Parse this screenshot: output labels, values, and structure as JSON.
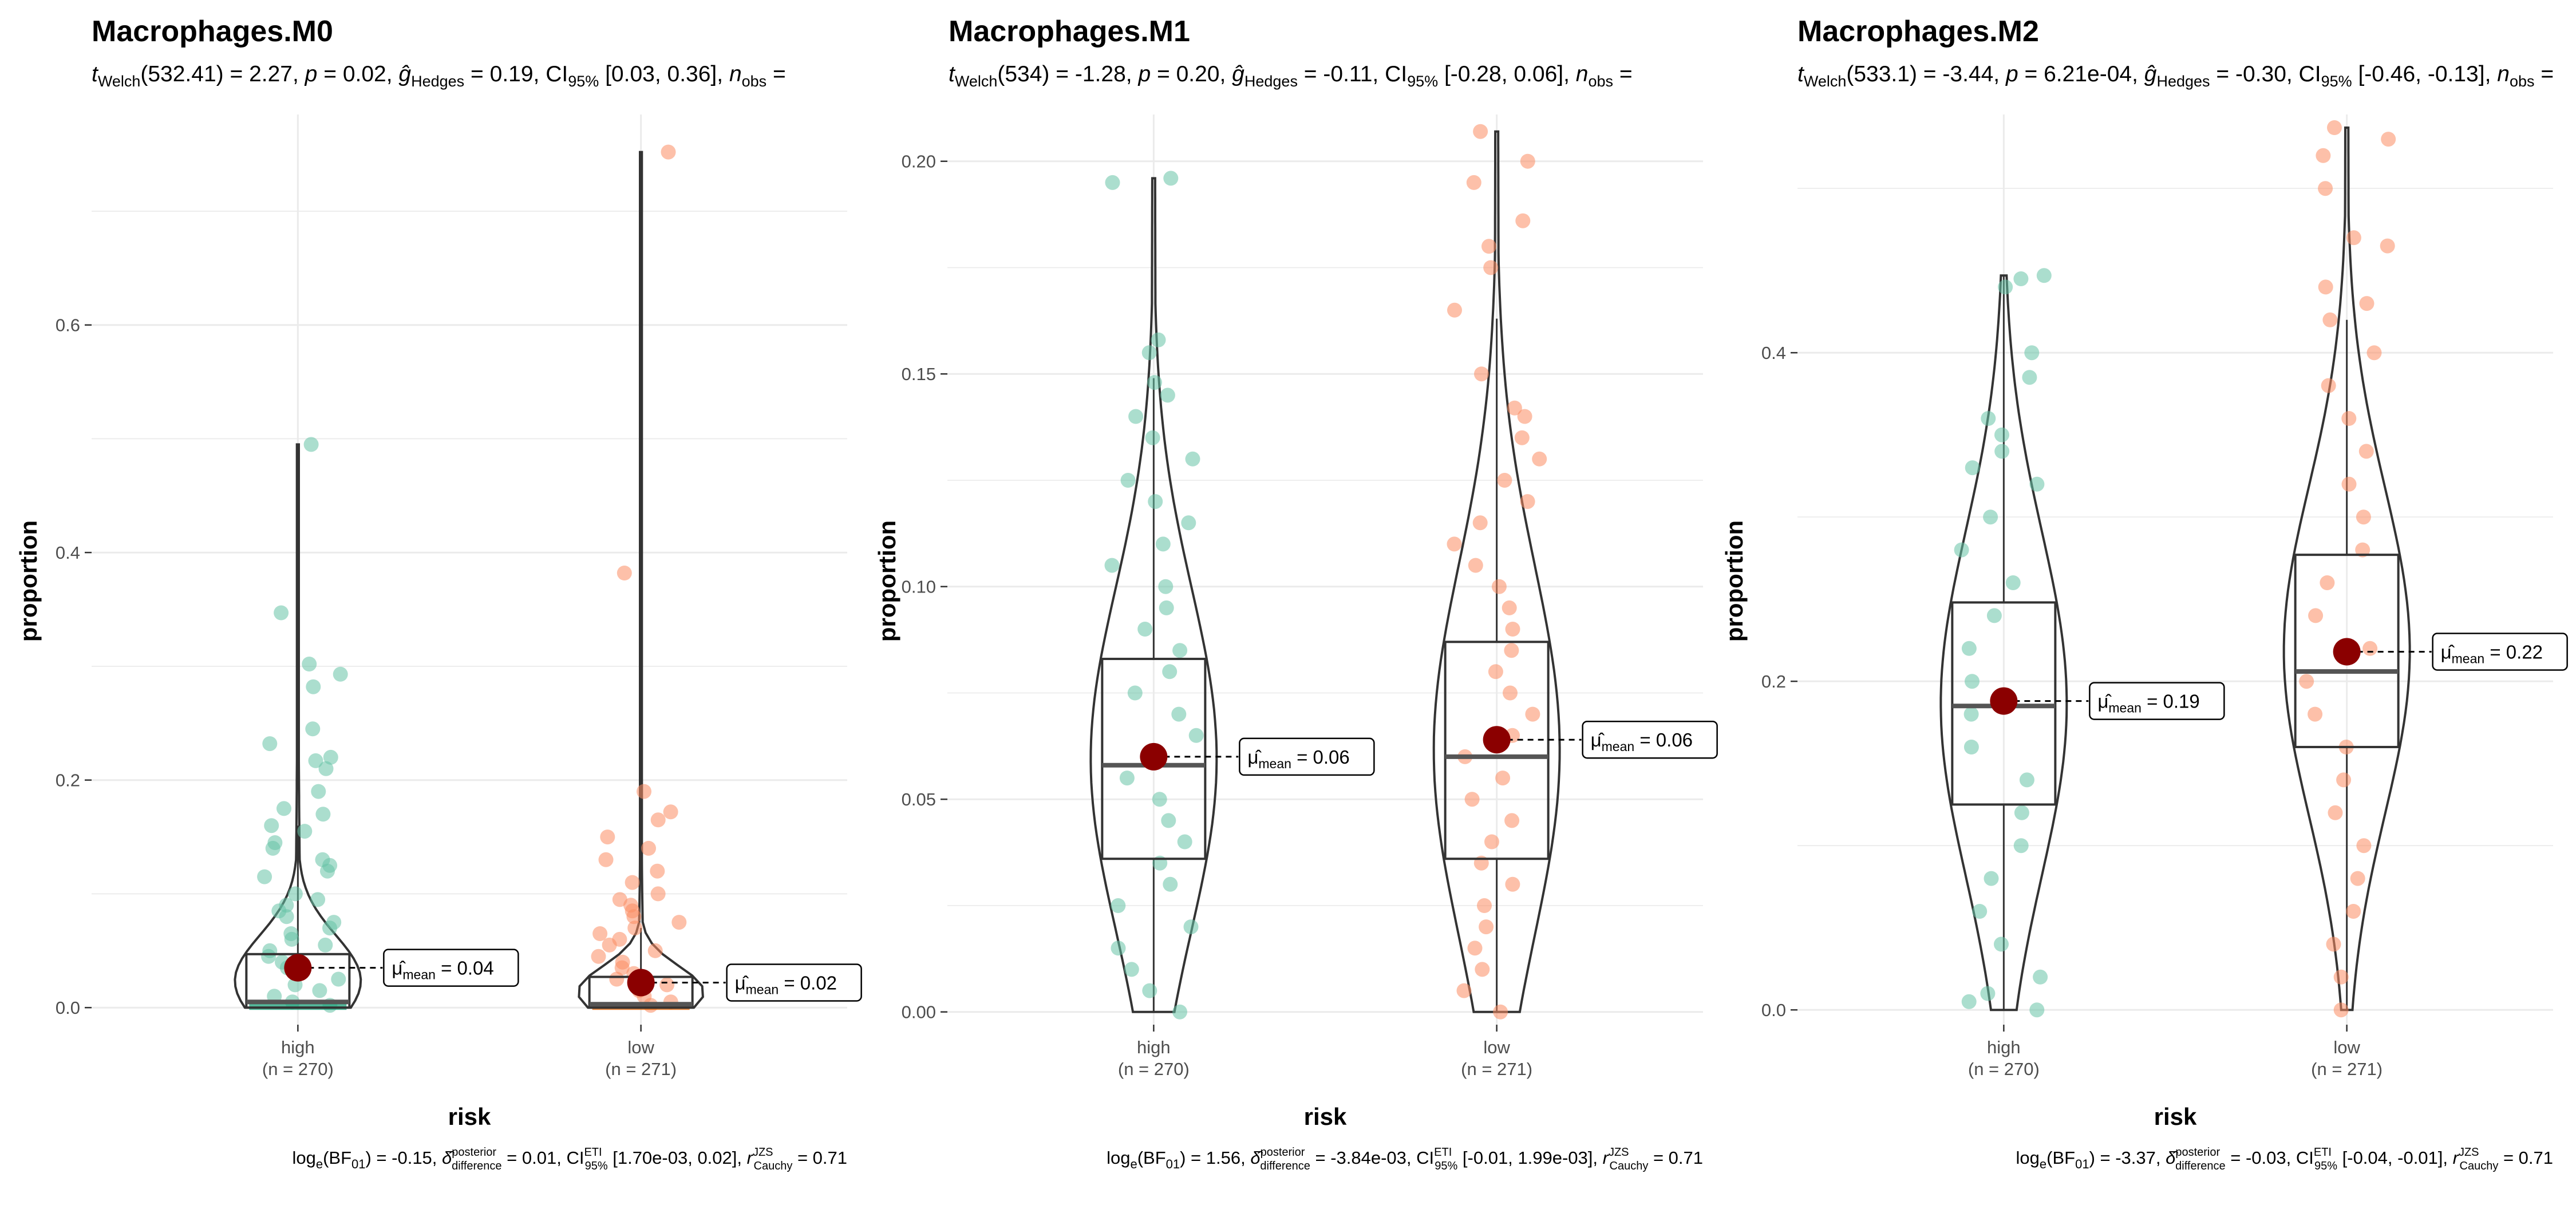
{
  "chart_data": [
    {
      "type": "violin-box-scatter",
      "title": "Macrophages.M0",
      "subtitle": {
        "df": "532.41",
        "t": "2.27",
        "p": "0.02",
        "g": "0.19",
        "ci": "[0.03, 0.36]",
        "tail": "n"
      },
      "caption": {
        "bf": "-0.15",
        "delta": "0.01",
        "ci": "[1.70e-03, 0.02]",
        "r": "0.71"
      },
      "xlabel": "risk",
      "ylabel": "proportion",
      "ylim": [
        -0.015,
        0.785
      ],
      "yticks": [
        0.0,
        0.2,
        0.4,
        0.6
      ],
      "ytick_labels": [
        "0.0",
        "0.2",
        "0.4",
        "0.6"
      ],
      "groups": [
        {
          "name": "high",
          "n_label": "(n = 270)",
          "color": "#66c2a5",
          "fill": "#1b9e77",
          "mean": 0.035,
          "mean_label": "= 0.04",
          "q1": 0.0,
          "median": 0.005,
          "q3": 0.047,
          "whisker_low": 0.0,
          "whisker_high": 0.16,
          "max": 0.495,
          "points": [
            0.495,
            0.347,
            0.302,
            0.293,
            0.282,
            0.245,
            0.232,
            0.22,
            0.217,
            0.21,
            0.19,
            0.175,
            0.17,
            0.16,
            0.155,
            0.145,
            0.14,
            0.13,
            0.125,
            0.12,
            0.115,
            0.1,
            0.095,
            0.09,
            0.085,
            0.08,
            0.075,
            0.07,
            0.065,
            0.06,
            0.055,
            0.05,
            0.045,
            0.04,
            0.035,
            0.03,
            0.025,
            0.02,
            0.015,
            0.01,
            0.005,
            0.002
          ]
        },
        {
          "name": "low",
          "n_label": "(n = 271)",
          "color": "#fc8d62",
          "fill": "#d95f02",
          "mean": 0.022,
          "mean_label": "= 0.02",
          "q1": 0.0,
          "median": 0.003,
          "q3": 0.027,
          "whisker_low": 0.0,
          "whisker_high": 0.07,
          "max": 0.752,
          "points": [
            0.752,
            0.382,
            0.19,
            0.172,
            0.165,
            0.15,
            0.14,
            0.13,
            0.12,
            0.11,
            0.1,
            0.095,
            0.09,
            0.085,
            0.08,
            0.075,
            0.07,
            0.065,
            0.06,
            0.055,
            0.05,
            0.045,
            0.04,
            0.035,
            0.03,
            0.025,
            0.02,
            0.015,
            0.01,
            0.005,
            0.002
          ]
        }
      ]
    },
    {
      "type": "violin-box-scatter",
      "title": "Macrophages.M1",
      "subtitle": {
        "df": "534",
        "t": "-1.28",
        "p": "0.20",
        "g": "-0.11",
        "ci": "[-0.28, 0.06]",
        "tail": "n"
      },
      "caption": {
        "bf": "1.56",
        "delta": "-3.84e-03",
        "ci": "[-0.01, 1.99e-03]",
        "r": "0.71"
      },
      "xlabel": "risk",
      "ylabel": "proportion",
      "ylim": [
        -0.003,
        0.211
      ],
      "yticks": [
        0.0,
        0.05,
        0.1,
        0.15,
        0.2
      ],
      "ytick_labels": [
        "0.00",
        "0.05",
        "0.10",
        "0.15",
        "0.20"
      ],
      "groups": [
        {
          "name": "high",
          "n_label": "(n = 270)",
          "color": "#66c2a5",
          "fill": "#1b9e77",
          "mean": 0.06,
          "mean_label": "= 0.06",
          "q1": 0.036,
          "median": 0.058,
          "q3": 0.083,
          "whisker_low": 0.0,
          "whisker_high": 0.149,
          "max": 0.196,
          "points": [
            0.196,
            0.195,
            0.158,
            0.155,
            0.148,
            0.145,
            0.14,
            0.135,
            0.13,
            0.125,
            0.12,
            0.115,
            0.11,
            0.105,
            0.1,
            0.095,
            0.09,
            0.085,
            0.08,
            0.075,
            0.07,
            0.065,
            0.06,
            0.055,
            0.05,
            0.045,
            0.04,
            0.035,
            0.03,
            0.025,
            0.02,
            0.015,
            0.01,
            0.005,
            0.0
          ]
        },
        {
          "name": "low",
          "n_label": "(n = 271)",
          "color": "#fc8d62",
          "fill": "#d95f02",
          "mean": 0.064,
          "mean_label": "= 0.06",
          "q1": 0.036,
          "median": 0.06,
          "q3": 0.087,
          "whisker_low": 0.0,
          "whisker_high": 0.163,
          "max": 0.207,
          "points": [
            0.207,
            0.2,
            0.195,
            0.186,
            0.18,
            0.175,
            0.165,
            0.15,
            0.142,
            0.14,
            0.135,
            0.13,
            0.125,
            0.12,
            0.115,
            0.11,
            0.105,
            0.1,
            0.095,
            0.09,
            0.085,
            0.08,
            0.075,
            0.07,
            0.065,
            0.06,
            0.055,
            0.05,
            0.045,
            0.04,
            0.035,
            0.03,
            0.025,
            0.02,
            0.015,
            0.01,
            0.005,
            0.0
          ]
        }
      ]
    },
    {
      "type": "violin-box-scatter",
      "title": "Macrophages.M2",
      "subtitle": {
        "df": "533.1",
        "t": "-3.44",
        "p": "6.21e-04",
        "g": "-0.30",
        "ci": "[-0.46, -0.13]",
        "tail": "n"
      },
      "caption": {
        "bf": "-3.37",
        "delta": "-0.03",
        "ci": "[-0.04, -0.01]",
        "r": "0.71"
      },
      "xlabel": "risk",
      "ylabel": "proportion",
      "ylim": [
        -0.009,
        0.545
      ],
      "yticks": [
        0.0,
        0.2,
        0.4
      ],
      "ytick_labels": [
        "0.0",
        "0.2",
        "0.4"
      ],
      "groups": [
        {
          "name": "high",
          "n_label": "(n = 270)",
          "color": "#66c2a5",
          "fill": "#1b9e77",
          "mean": 0.188,
          "mean_label": "= 0.19",
          "q1": 0.125,
          "median": 0.185,
          "q3": 0.248,
          "whisker_low": 0.0,
          "whisker_high": 0.447,
          "max": 0.447,
          "points": [
            0.447,
            0.445,
            0.44,
            0.4,
            0.385,
            0.36,
            0.35,
            0.34,
            0.33,
            0.32,
            0.3,
            0.28,
            0.26,
            0.24,
            0.22,
            0.2,
            0.18,
            0.16,
            0.14,
            0.12,
            0.1,
            0.08,
            0.06,
            0.04,
            0.02,
            0.01,
            0.005,
            0.0
          ]
        },
        {
          "name": "low",
          "n_label": "(n = 271)",
          "color": "#fc8d62",
          "fill": "#d95f02",
          "mean": 0.218,
          "mean_label": "= 0.22",
          "q1": 0.16,
          "median": 0.206,
          "q3": 0.277,
          "whisker_low": 0.0,
          "whisker_high": 0.42,
          "max": 0.537,
          "points": [
            0.537,
            0.53,
            0.52,
            0.5,
            0.47,
            0.465,
            0.44,
            0.43,
            0.42,
            0.4,
            0.38,
            0.36,
            0.34,
            0.32,
            0.3,
            0.28,
            0.26,
            0.24,
            0.22,
            0.2,
            0.18,
            0.16,
            0.14,
            0.12,
            0.1,
            0.08,
            0.06,
            0.04,
            0.02,
            0.0
          ]
        }
      ]
    }
  ],
  "colors": {
    "mean_point": "#8b0000",
    "grid": "#ebebeb",
    "outline": "#333333",
    "label_box": "#000000"
  }
}
